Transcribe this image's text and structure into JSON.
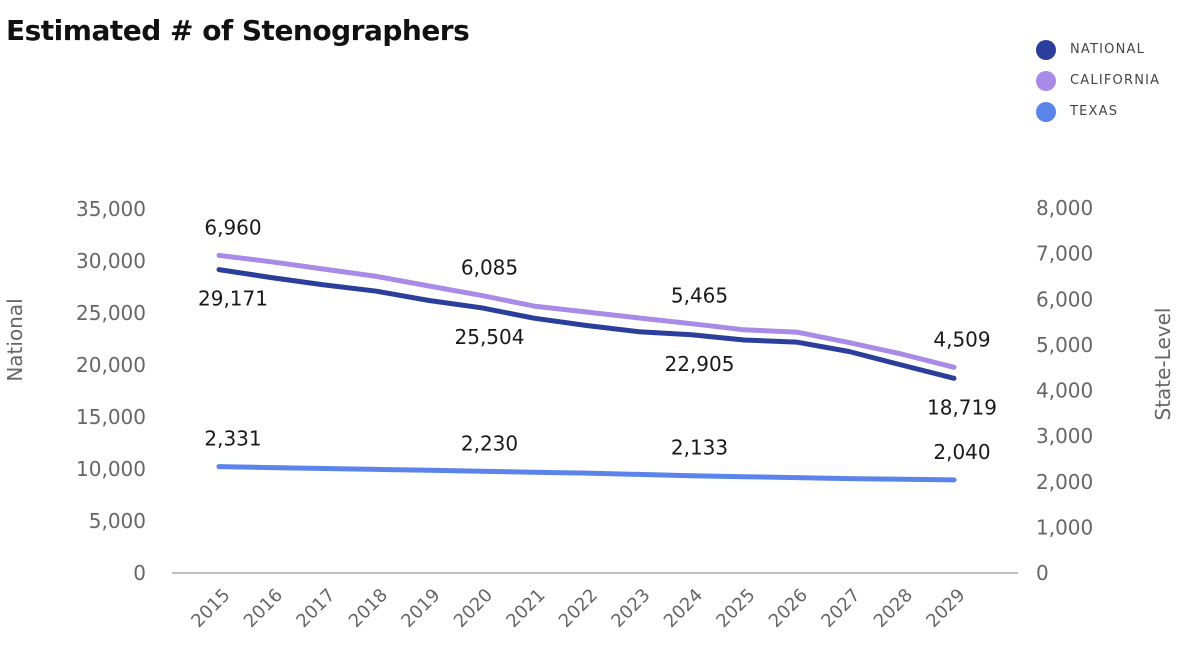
{
  "chart_data": {
    "type": "line",
    "title": "Estimated # of Stenographers",
    "categories": [
      "2015",
      "2016",
      "2017",
      "2018",
      "2019",
      "2020",
      "2021",
      "2022",
      "2023",
      "2024",
      "2025",
      "2026",
      "2027",
      "2028",
      "2029"
    ],
    "y_left": {
      "label": "National",
      "range": [
        0,
        35000
      ],
      "ticks": [
        "0",
        "5,000",
        "10,000",
        "15,000",
        "20,000",
        "25,000",
        "30,000",
        "35,000"
      ]
    },
    "y_right": {
      "label": "State-Level",
      "range": [
        0,
        8000
      ],
      "ticks": [
        "0",
        "1,000",
        "2,000",
        "3,000",
        "4,000",
        "5,000",
        "6,000",
        "7,000",
        "8,000"
      ]
    },
    "series": [
      {
        "name": "NATIONAL",
        "axis": "left",
        "color": "#2b3e9c",
        "values": [
          29171,
          28400,
          27700,
          27100,
          26200,
          25504,
          24500,
          23800,
          23200,
          22905,
          22400,
          22200,
          21300,
          20000,
          18719
        ],
        "labels": [
          {
            "index": 0,
            "text": "29,171"
          },
          {
            "index": 5,
            "text": "25,504"
          },
          {
            "index": 9,
            "text": "22,905"
          },
          {
            "index": 14,
            "text": "18,719"
          }
        ]
      },
      {
        "name": "CALIFORNIA",
        "axis": "right",
        "color": "#a98ae6",
        "values": [
          6960,
          6820,
          6660,
          6500,
          6290,
          6085,
          5850,
          5720,
          5590,
          5465,
          5330,
          5280,
          5050,
          4800,
          4509
        ],
        "labels": [
          {
            "index": 0,
            "text": "6,960"
          },
          {
            "index": 5,
            "text": "6,085"
          },
          {
            "index": 9,
            "text": "5,465"
          },
          {
            "index": 14,
            "text": "4,509"
          }
        ]
      },
      {
        "name": "TEXAS",
        "axis": "right",
        "color": "#5b84ea",
        "values": [
          2331,
          2310,
          2290,
          2270,
          2250,
          2230,
          2210,
          2190,
          2160,
          2133,
          2110,
          2090,
          2070,
          2055,
          2040
        ],
        "labels": [
          {
            "index": 0,
            "text": "2,331"
          },
          {
            "index": 5,
            "text": "2,230"
          },
          {
            "index": 9,
            "text": "2,133"
          },
          {
            "index": 14,
            "text": "2,040"
          }
        ]
      }
    ],
    "legend_position": "top-right",
    "grid": false
  }
}
